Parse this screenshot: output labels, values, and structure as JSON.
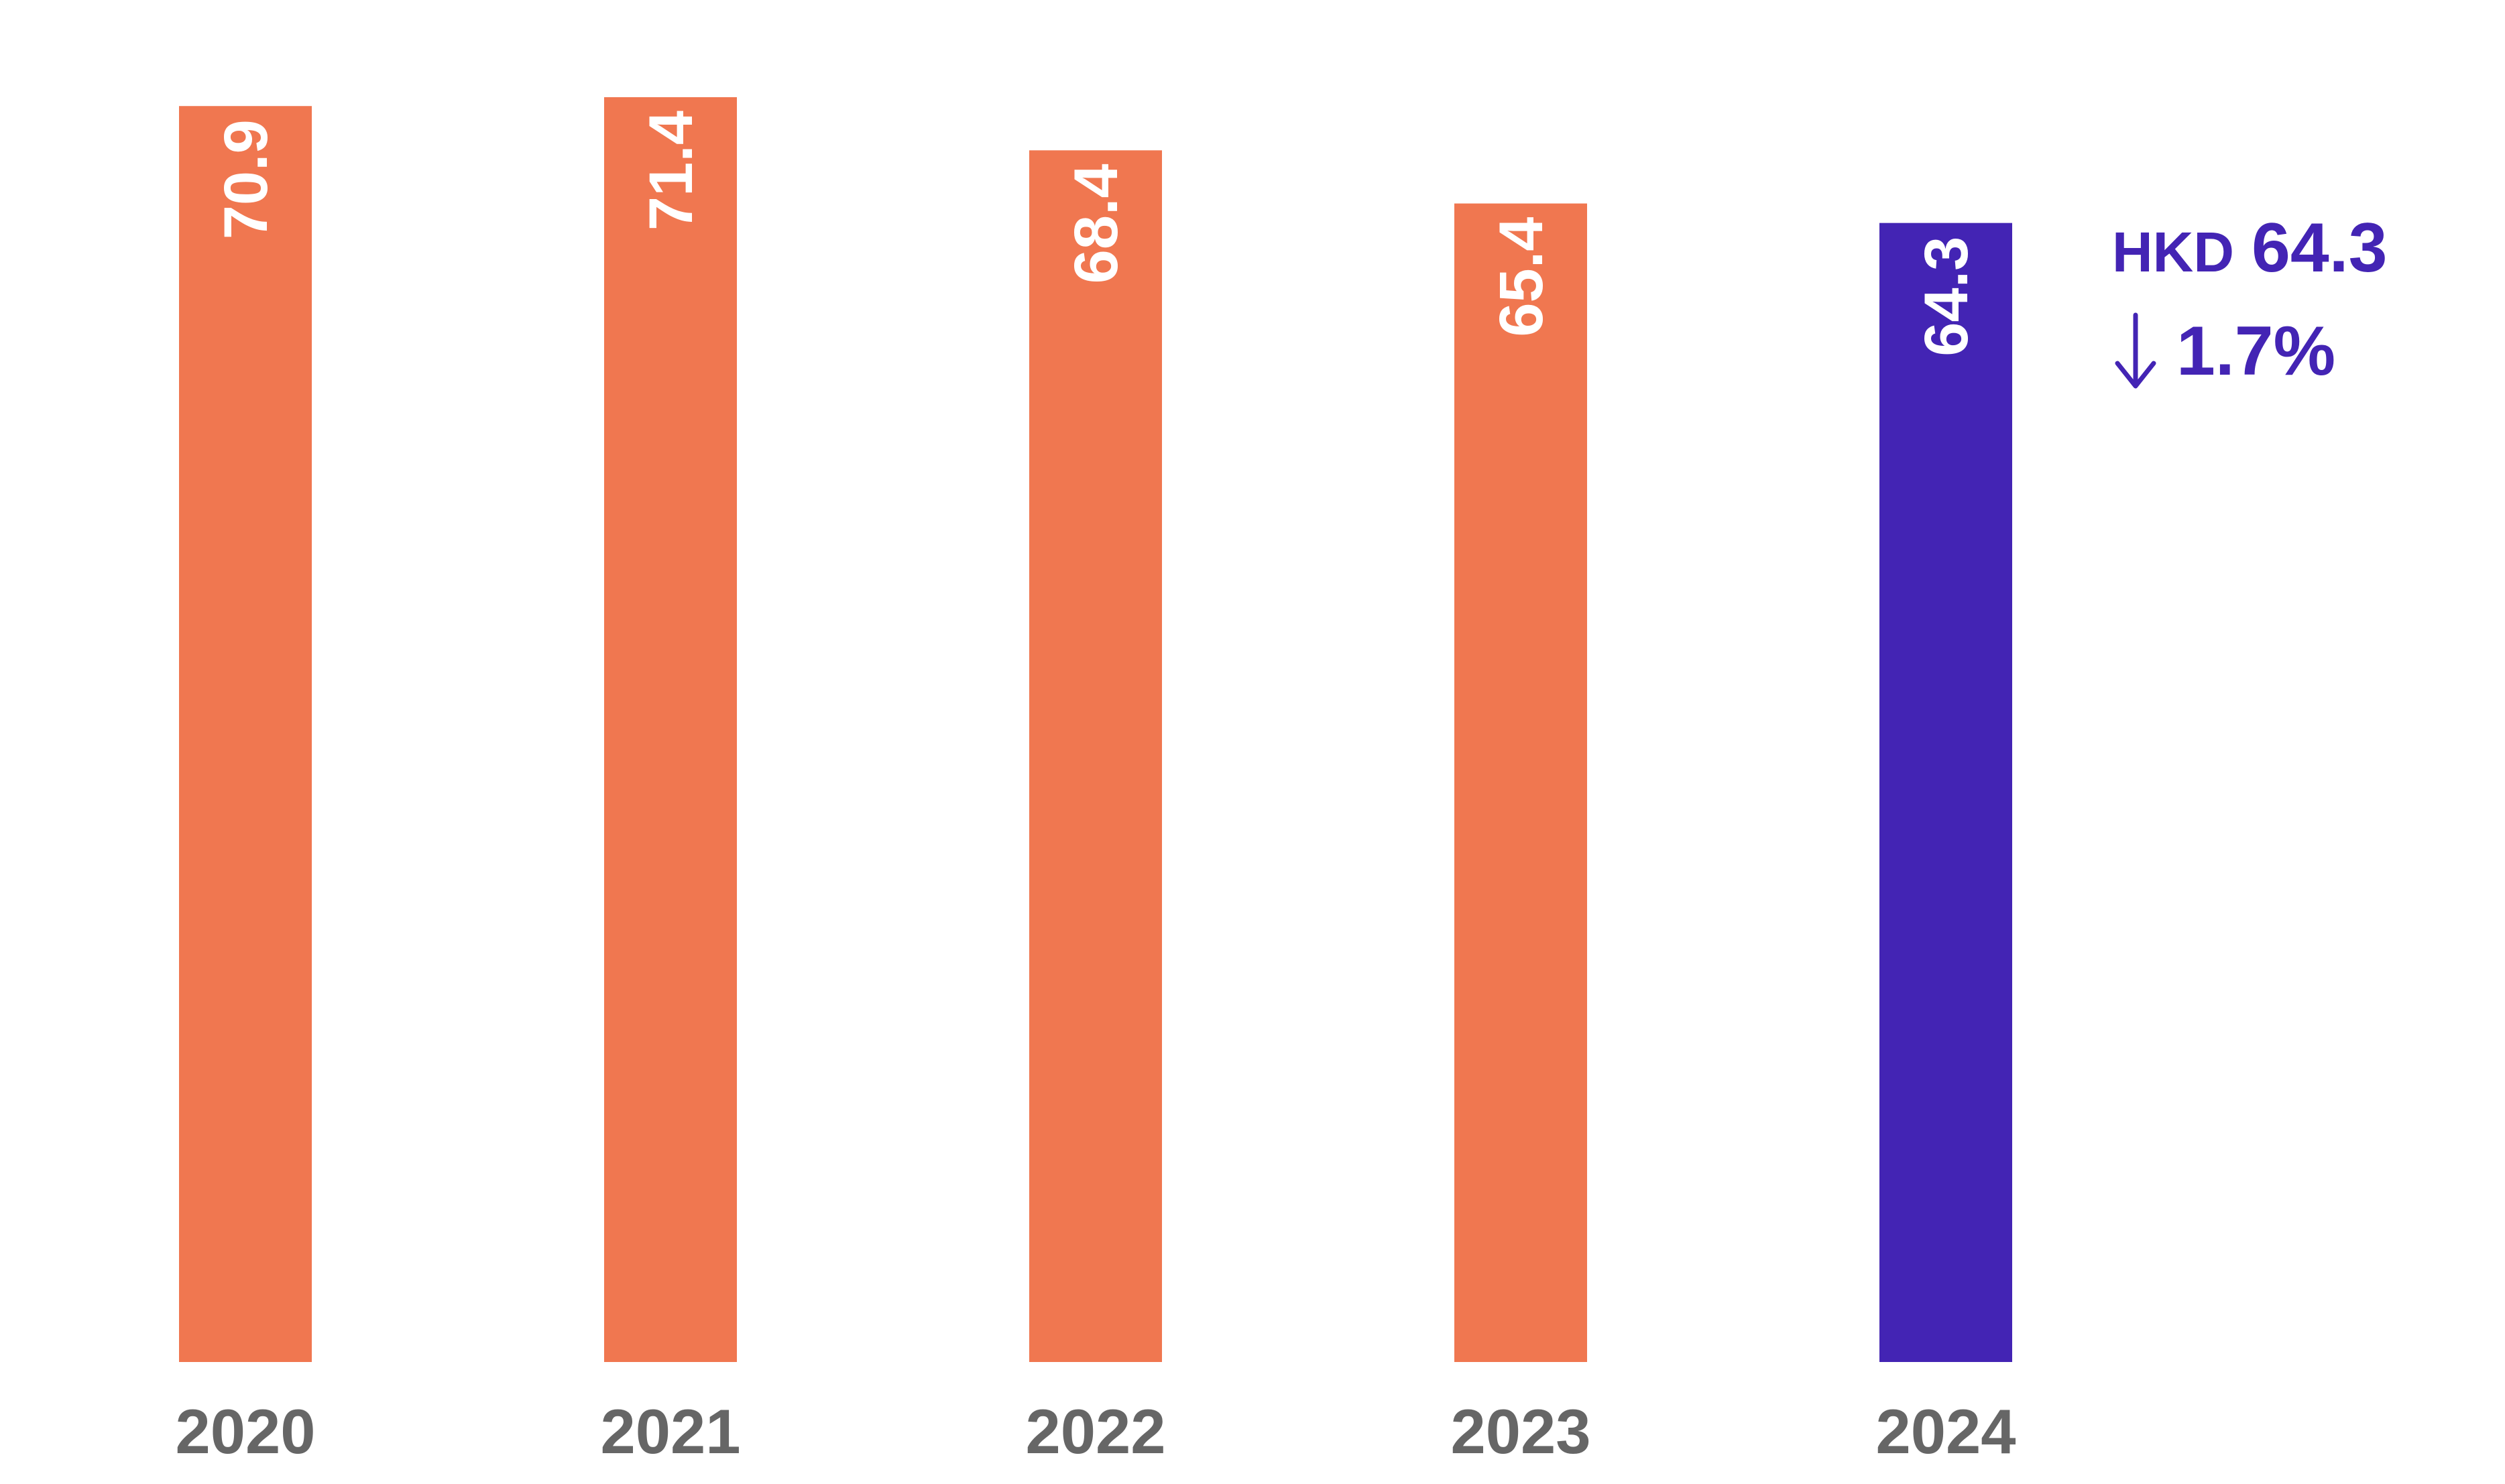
{
  "chart_data": {
    "type": "bar",
    "categories": [
      "2020",
      "2021",
      "2022",
      "2023",
      "2024"
    ],
    "values": [
      70.9,
      71.4,
      68.4,
      65.4,
      64.3
    ],
    "value_labels": [
      "70.9",
      "71.4",
      "68.4",
      "65.4",
      "64.3"
    ],
    "title": "",
    "xlabel": "",
    "ylabel": "",
    "ylim": [
      0,
      71.4
    ],
    "grid": false,
    "bar_colors": [
      "#f07750",
      "#f07750",
      "#f07750",
      "#f07750",
      "#4324b4"
    ],
    "tick_label_color": "#666666",
    "value_label_color": "#ffffff",
    "annotation": {
      "currency": "HKD",
      "amount": "64.3",
      "change": "1.7%",
      "direction_icon": "down-arrow-icon",
      "color": "#4324b4"
    }
  }
}
